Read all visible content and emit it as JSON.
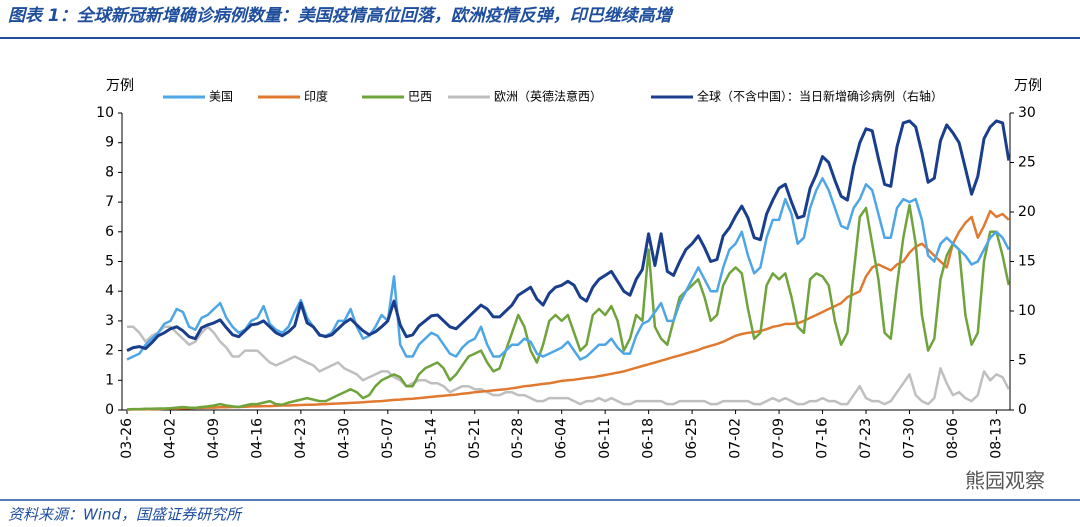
{
  "header": {
    "title": "图表 1：全球新冠新增确诊病例数量：美国疫情高位回落，欧洲疫情反弹，印巴继续高增"
  },
  "footer": {
    "source": "资料来源：Wind，国盛证券研究所",
    "watermark": "熊园观察"
  },
  "chart_data": {
    "type": "line",
    "y_label": "万例",
    "y2_label": "万例",
    "ylim": [
      0,
      10
    ],
    "yticks": [
      0,
      1,
      2,
      3,
      4,
      5,
      6,
      7,
      8,
      9,
      10
    ],
    "y2lim": [
      0,
      30
    ],
    "y2ticks": [
      0,
      5,
      10,
      15,
      20,
      25,
      30
    ],
    "categories": [
      "03-26",
      null,
      null,
      null,
      null,
      null,
      null,
      "04-02",
      null,
      null,
      null,
      null,
      null,
      null,
      "04-09",
      null,
      null,
      null,
      null,
      null,
      null,
      "04-16",
      null,
      null,
      null,
      null,
      null,
      null,
      "04-23",
      null,
      null,
      null,
      null,
      null,
      null,
      "04-30",
      null,
      null,
      null,
      null,
      null,
      null,
      "05-07",
      null,
      null,
      null,
      null,
      null,
      null,
      "05-14",
      null,
      null,
      null,
      null,
      null,
      null,
      "05-21",
      null,
      null,
      null,
      null,
      null,
      null,
      "05-28",
      null,
      null,
      null,
      null,
      null,
      null,
      "06-04",
      null,
      null,
      null,
      null,
      null,
      null,
      "06-11",
      null,
      null,
      null,
      null,
      null,
      null,
      "06-18",
      null,
      null,
      null,
      null,
      null,
      null,
      "06-25",
      null,
      null,
      null,
      null,
      null,
      null,
      "07-02",
      null,
      null,
      null,
      null,
      null,
      null,
      "07-09",
      null,
      null,
      null,
      null,
      null,
      null,
      "07-16",
      null,
      null,
      null,
      null,
      null,
      null,
      "07-23",
      null,
      null,
      null,
      null,
      null,
      null,
      "07-30",
      null,
      null,
      null,
      null,
      null,
      null,
      "08-06",
      null,
      null,
      null,
      null,
      null,
      null,
      "08-13",
      null,
      null
    ],
    "series": [
      {
        "name": "美国",
        "color": "#4ea6e6",
        "values": [
          1.7,
          1.8,
          1.9,
          2.2,
          2.4,
          2.6,
          2.9,
          3.0,
          3.4,
          3.3,
          2.8,
          2.7,
          3.1,
          3.2,
          3.4,
          3.6,
          3.1,
          2.8,
          2.6,
          2.7,
          3.0,
          3.1,
          3.5,
          2.9,
          2.7,
          2.6,
          2.8,
          3.3,
          3.7,
          3.1,
          2.8,
          2.5,
          2.5,
          2.6,
          3.0,
          3.0,
          3.4,
          2.8,
          2.4,
          2.5,
          2.8,
          3.2,
          3.0,
          4.5,
          2.2,
          1.8,
          1.8,
          2.2,
          2.4,
          2.6,
          2.5,
          2.2,
          1.9,
          1.8,
          2.1,
          2.3,
          2.4,
          2.8,
          2.2,
          1.8,
          1.8,
          2.0,
          2.2,
          2.2,
          2.4,
          2.3,
          1.9,
          1.8,
          1.9,
          2.0,
          2.1,
          2.3,
          2.0,
          1.7,
          1.8,
          2.0,
          2.2,
          2.2,
          2.4,
          2.1,
          1.9,
          1.9,
          2.5,
          2.9,
          3.0,
          3.3,
          3.6,
          3.0,
          3.0,
          3.6,
          4.0,
          4.4,
          4.8,
          4.4,
          4.0,
          4.0,
          4.8,
          5.4,
          5.6,
          6.0,
          5.2,
          4.6,
          4.8,
          5.8,
          6.4,
          6.4,
          7.1,
          6.6,
          5.6,
          5.8,
          6.8,
          7.4,
          7.8,
          7.4,
          6.8,
          6.2,
          6.1,
          6.8,
          7.1,
          7.6,
          7.4,
          6.6,
          5.8,
          5.8,
          6.8,
          7.1,
          7.0,
          7.1,
          6.4,
          5.2,
          5.0,
          5.6,
          5.8,
          5.6,
          5.4,
          5.2,
          4.9,
          5.0,
          5.4,
          5.8,
          6.0,
          5.8,
          5.4
        ]
      },
      {
        "name": "印度",
        "color": "#e07a30",
        "values": [
          0.01,
          0.02,
          0.02,
          0.02,
          0.03,
          0.03,
          0.04,
          0.05,
          0.05,
          0.06,
          0.06,
          0.07,
          0.07,
          0.08,
          0.08,
          0.09,
          0.09,
          0.1,
          0.1,
          0.11,
          0.12,
          0.12,
          0.13,
          0.13,
          0.14,
          0.15,
          0.15,
          0.16,
          0.17,
          0.18,
          0.18,
          0.19,
          0.2,
          0.21,
          0.22,
          0.23,
          0.24,
          0.25,
          0.26,
          0.28,
          0.29,
          0.3,
          0.32,
          0.34,
          0.35,
          0.37,
          0.38,
          0.4,
          0.42,
          0.44,
          0.46,
          0.48,
          0.5,
          0.52,
          0.55,
          0.57,
          0.6,
          0.62,
          0.64,
          0.66,
          0.68,
          0.7,
          0.73,
          0.76,
          0.8,
          0.82,
          0.85,
          0.88,
          0.9,
          0.94,
          0.98,
          1.0,
          1.02,
          1.05,
          1.08,
          1.1,
          1.14,
          1.18,
          1.22,
          1.26,
          1.3,
          1.36,
          1.42,
          1.48,
          1.54,
          1.6,
          1.66,
          1.72,
          1.78,
          1.84,
          1.9,
          1.96,
          2.02,
          2.1,
          2.16,
          2.22,
          2.3,
          2.4,
          2.5,
          2.56,
          2.6,
          2.62,
          2.66,
          2.72,
          2.8,
          2.84,
          2.9,
          2.9,
          2.92,
          3.0,
          3.1,
          3.2,
          3.3,
          3.4,
          3.5,
          3.6,
          3.8,
          3.9,
          4.0,
          4.5,
          4.8,
          4.9,
          4.8,
          4.7,
          4.9,
          5.0,
          5.3,
          5.5,
          5.6,
          5.4,
          5.2,
          5.0,
          4.8,
          5.6,
          6.0,
          6.3,
          6.5,
          5.8,
          6.2,
          6.7,
          6.5,
          6.6,
          6.4
        ]
      },
      {
        "name": "巴西",
        "color": "#6fa33b",
        "values": [
          0.02,
          0.03,
          0.03,
          0.04,
          0.04,
          0.05,
          0.05,
          0.06,
          0.08,
          0.1,
          0.08,
          0.07,
          0.1,
          0.12,
          0.15,
          0.2,
          0.15,
          0.12,
          0.1,
          0.15,
          0.2,
          0.2,
          0.25,
          0.3,
          0.2,
          0.18,
          0.25,
          0.3,
          0.35,
          0.4,
          0.35,
          0.3,
          0.3,
          0.4,
          0.5,
          0.6,
          0.7,
          0.6,
          0.4,
          0.5,
          0.8,
          1.0,
          1.1,
          1.2,
          1.1,
          0.8,
          0.8,
          1.2,
          1.4,
          1.5,
          1.6,
          1.4,
          1.0,
          1.2,
          1.5,
          1.8,
          1.9,
          2.0,
          1.6,
          1.3,
          1.4,
          2.0,
          2.6,
          3.2,
          2.8,
          2.0,
          1.6,
          2.2,
          3.0,
          3.2,
          3.0,
          3.2,
          2.6,
          2.0,
          2.2,
          3.2,
          3.4,
          3.2,
          3.5,
          3.0,
          2.0,
          2.4,
          3.2,
          3.0,
          5.4,
          2.8,
          2.4,
          2.2,
          3.0,
          3.8,
          4.0,
          4.2,
          4.4,
          3.8,
          3.0,
          3.2,
          4.2,
          4.6,
          4.8,
          4.6,
          3.4,
          2.4,
          2.6,
          4.2,
          4.6,
          4.4,
          4.6,
          3.8,
          2.8,
          2.6,
          4.4,
          4.6,
          4.5,
          4.2,
          3.0,
          2.2,
          2.6,
          4.6,
          6.5,
          6.8,
          5.6,
          4.4,
          2.6,
          2.4,
          4.2,
          5.8,
          6.9,
          5.6,
          3.2,
          2.0,
          2.4,
          4.4,
          5.2,
          5.6,
          5.4,
          3.2,
          2.2,
          2.6,
          5.0,
          6.0,
          6.0,
          5.2,
          4.2
        ]
      },
      {
        "name": "欧洲（英德法意西）",
        "color": "#bfbfbf",
        "values": [
          2.8,
          2.8,
          2.6,
          2.3,
          2.5,
          2.6,
          2.8,
          2.8,
          2.6,
          2.4,
          2.2,
          2.3,
          2.6,
          2.8,
          2.6,
          2.3,
          2.1,
          1.8,
          1.8,
          2.0,
          2.0,
          2.0,
          1.8,
          1.6,
          1.5,
          1.6,
          1.7,
          1.8,
          1.7,
          1.6,
          1.5,
          1.3,
          1.4,
          1.5,
          1.6,
          1.4,
          1.3,
          1.2,
          1.0,
          1.1,
          1.2,
          1.3,
          1.3,
          1.1,
          1.0,
          0.8,
          0.9,
          1.0,
          1.0,
          0.9,
          0.9,
          0.8,
          0.6,
          0.7,
          0.8,
          0.8,
          0.7,
          0.7,
          0.6,
          0.5,
          0.5,
          0.6,
          0.6,
          0.5,
          0.5,
          0.4,
          0.3,
          0.3,
          0.4,
          0.4,
          0.4,
          0.4,
          0.3,
          0.2,
          0.3,
          0.3,
          0.4,
          0.3,
          0.4,
          0.3,
          0.2,
          0.2,
          0.3,
          0.3,
          0.3,
          0.3,
          0.3,
          0.2,
          0.2,
          0.3,
          0.3,
          0.3,
          0.3,
          0.3,
          0.2,
          0.2,
          0.3,
          0.3,
          0.3,
          0.3,
          0.3,
          0.2,
          0.2,
          0.3,
          0.4,
          0.3,
          0.4,
          0.3,
          0.2,
          0.2,
          0.3,
          0.3,
          0.4,
          0.3,
          0.3,
          0.2,
          0.2,
          0.5,
          0.8,
          0.4,
          0.3,
          0.3,
          0.2,
          0.3,
          0.6,
          0.9,
          1.2,
          0.5,
          0.3,
          0.2,
          0.4,
          1.4,
          0.9,
          0.5,
          0.6,
          0.4,
          0.3,
          0.5,
          1.3,
          1.0,
          1.2,
          1.1,
          0.7
        ]
      },
      {
        "name": "全球（不含中国）：当日新增确诊病例（右轴）",
        "color": "#1a3e8c",
        "axis": "y2",
        "values": [
          6.0,
          6.3,
          6.4,
          6.2,
          6.8,
          7.5,
          7.8,
          8.2,
          8.4,
          8.0,
          7.4,
          7.2,
          8.3,
          8.6,
          8.8,
          9.1,
          8.3,
          7.6,
          7.4,
          8.0,
          8.6,
          8.7,
          9.0,
          8.4,
          7.8,
          7.5,
          7.9,
          8.5,
          10.8,
          8.8,
          8.4,
          7.6,
          7.4,
          7.6,
          8.2,
          8.8,
          9.2,
          8.6,
          8.0,
          7.6,
          7.9,
          8.4,
          9.0,
          11.0,
          8.6,
          7.4,
          7.6,
          8.5,
          9.0,
          9.5,
          9.6,
          9.0,
          8.4,
          8.2,
          8.8,
          9.4,
          10.0,
          10.6,
          10.2,
          9.4,
          9.4,
          10.0,
          10.6,
          11.6,
          12.0,
          12.4,
          11.2,
          10.6,
          11.8,
          12.4,
          12.6,
          13.0,
          12.6,
          11.4,
          11.0,
          12.4,
          13.2,
          13.6,
          14.0,
          13.0,
          12.0,
          11.6,
          13.2,
          14.2,
          17.8,
          14.6,
          17.8,
          14.0,
          13.6,
          15.0,
          16.2,
          16.8,
          17.6,
          16.4,
          15.0,
          15.2,
          17.6,
          18.4,
          19.6,
          20.6,
          19.4,
          17.4,
          17.2,
          19.8,
          21.2,
          22.4,
          22.8,
          21.0,
          19.4,
          19.6,
          22.4,
          23.8,
          25.6,
          25.0,
          23.2,
          21.6,
          21.2,
          24.6,
          27.0,
          28.4,
          28.2,
          25.4,
          22.8,
          22.6,
          26.6,
          29.0,
          29.2,
          28.6,
          26.0,
          23.0,
          23.4,
          27.2,
          28.8,
          28.0,
          27.0,
          24.4,
          21.8,
          23.6,
          27.4,
          28.6,
          29.2,
          29.0,
          25.2
        ]
      }
    ]
  }
}
